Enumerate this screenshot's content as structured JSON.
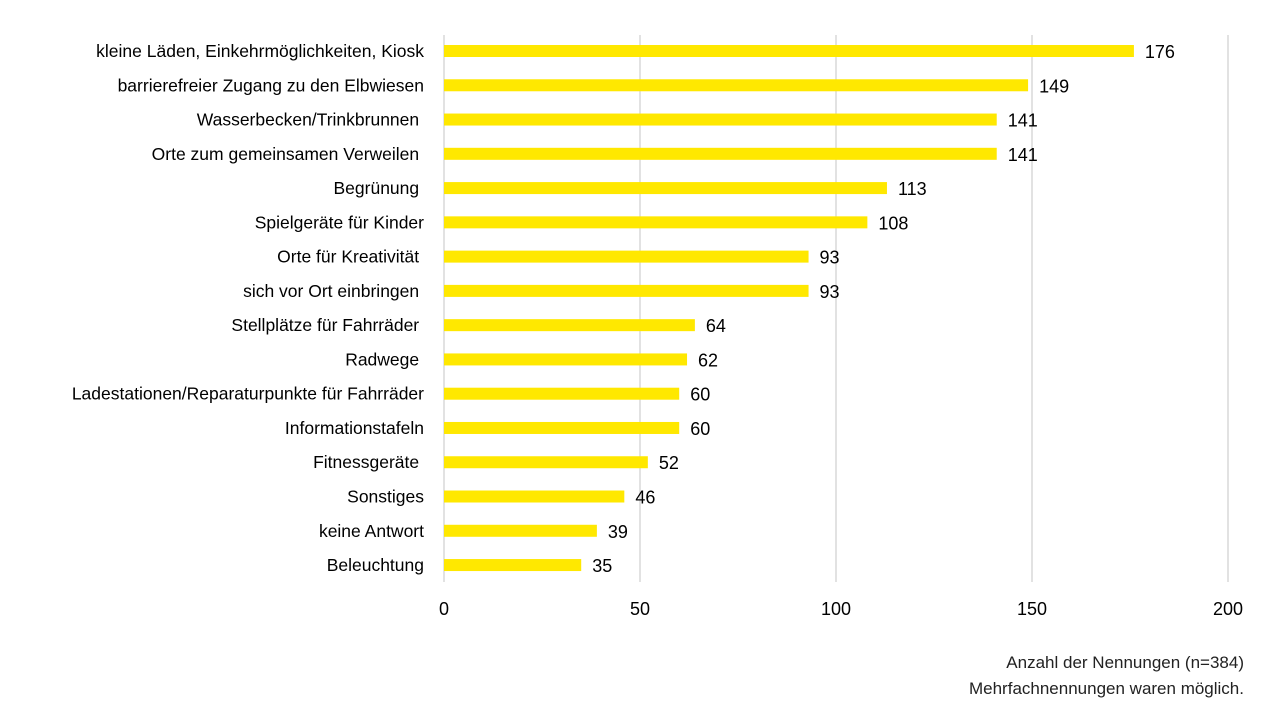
{
  "chart_data": {
    "type": "bar",
    "orientation": "horizontal",
    "categories": [
      "kleine Läden, Einkehrmöglichkeiten, Kiosk",
      "barrierefreier Zugang zu den Elbwiesen",
      "Wasserbecken/Trinkbrunnen ",
      "Orte zum gemeinsamen Verweilen ",
      "Begrünung ",
      "Spielgeräte für Kinder",
      "Orte für Kreativität ",
      "sich vor Ort einbringen ",
      "Stellplätze für Fahrräder ",
      "Radwege ",
      "Ladestationen/Reparaturpunkte für Fahrräder",
      "Informationstafeln",
      "Fitnessgeräte ",
      "Sonstiges",
      "keine Antwort",
      "Beleuchtung"
    ],
    "values": [
      176,
      149,
      141,
      141,
      113,
      108,
      93,
      93,
      64,
      62,
      60,
      60,
      52,
      46,
      39,
      35
    ],
    "xlim": [
      0,
      200
    ],
    "xticks": [
      0,
      50,
      100,
      150,
      200
    ],
    "grid": true,
    "bar_color": "#FFE800",
    "grid_color": "#D9D9D9",
    "notes": [
      "Anzahl der Nennungen (n=384)",
      "Mehrfachnennungen waren möglich."
    ]
  }
}
